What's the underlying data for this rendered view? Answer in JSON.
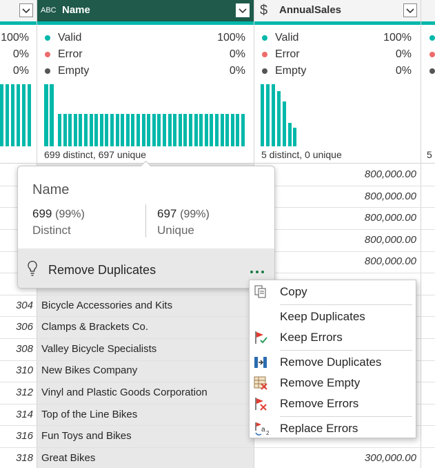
{
  "left_column": {
    "quality": [
      "100%",
      "0%",
      "0%"
    ]
  },
  "columns": [
    {
      "name": "Name",
      "type_icon": "ABC",
      "quality": [
        {
          "label": "Valid",
          "value": "100%"
        },
        {
          "label": "Error",
          "value": "0%"
        },
        {
          "label": "Empty",
          "value": "0%"
        }
      ],
      "summary": "699 distinct, 697 unique"
    },
    {
      "name": "AnnualSales",
      "type_icon": "$",
      "quality": [
        {
          "label": "Valid",
          "value": "100%"
        },
        {
          "label": "Error",
          "value": "0%"
        },
        {
          "label": "Empty",
          "value": "0%"
        }
      ],
      "summary": "5 distinct, 0 unique"
    }
  ],
  "right_column": {
    "summary": "5"
  },
  "grid": {
    "upper_sales": [
      "800,000.00",
      "800,000.00",
      "800,000.00",
      "800,000.00",
      "800,000.00"
    ],
    "rows": [
      {
        "id": "304",
        "name": "Bicycle Accessories and Kits"
      },
      {
        "id": "306",
        "name": "Clamps & Brackets Co."
      },
      {
        "id": "308",
        "name": "Valley Bicycle Specialists"
      },
      {
        "id": "310",
        "name": "New Bikes Company"
      },
      {
        "id": "312",
        "name": "Vinyl and Plastic Goods Corporation"
      },
      {
        "id": "314",
        "name": "Top of the Line Bikes"
      },
      {
        "id": "316",
        "name": "Fun Toys and Bikes"
      },
      {
        "id": "318",
        "name": "Great Bikes",
        "sales": "300,000.00"
      }
    ]
  },
  "tooltip": {
    "title": "Name",
    "distinct": {
      "count": "699",
      "percent": "(99%)",
      "label": "Distinct"
    },
    "unique": {
      "count": "697",
      "percent": "(99%)",
      "label": "Unique"
    },
    "action": "Remove Duplicates"
  },
  "context_menu": {
    "items": [
      "Copy",
      "Keep Duplicates",
      "Keep Errors",
      "Remove Duplicates",
      "Remove Empty",
      "Remove Errors",
      "Replace Errors"
    ]
  }
}
